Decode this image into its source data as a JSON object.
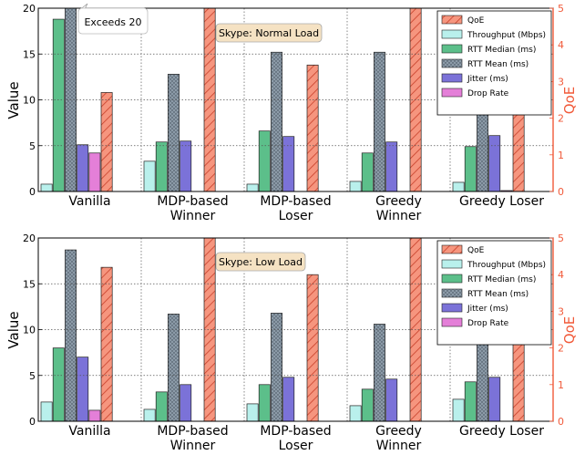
{
  "colors": {
    "qoe_axis": "#f15a3a",
    "qoe_fill": "#f6957e",
    "grid": "#555555"
  },
  "chart_data": [
    {
      "type": "bar",
      "title": "",
      "annotation": "Skype: Normal Load",
      "callout": "Exceeds 20",
      "ylabel": "Value",
      "y2label": "QoE",
      "ylim": [
        0,
        20
      ],
      "y2lim": [
        0,
        5
      ],
      "yticks": [
        "0",
        "5",
        "10",
        "15",
        "20"
      ],
      "y2ticks": [
        "0",
        "1",
        "2",
        "3",
        "4",
        "5"
      ],
      "categories": [
        "Vanilla",
        "MDP-based Winner",
        "MDP-based Loser",
        "Greedy Winner",
        "Greedy Loser"
      ],
      "category_labels": [
        [
          "Vanilla"
        ],
        [
          "MDP-based",
          "Winner"
        ],
        [
          "MDP-based",
          "Loser"
        ],
        [
          "Greedy",
          "Winner"
        ],
        [
          "Greedy Loser"
        ]
      ],
      "series": [
        {
          "name": "Throughput (Mbps)",
          "color": "#b9f0ec",
          "hatch": "none",
          "values": [
            0.8,
            3.3,
            0.8,
            1.1,
            1.0
          ]
        },
        {
          "name": "RTT Median (ms)",
          "color": "#5cbf8a",
          "hatch": "none",
          "values": [
            18.8,
            5.4,
            6.6,
            4.2,
            4.9
          ]
        },
        {
          "name": "RTT Mean (ms)",
          "color": "#8c9ba8",
          "hatch": "dots",
          "values": [
            20,
            12.8,
            15.2,
            15.2,
            15.7
          ]
        },
        {
          "name": "Jitter (ms)",
          "color": "#7b72d8",
          "hatch": "none",
          "values": [
            5.1,
            5.5,
            6.0,
            5.4,
            6.1
          ]
        },
        {
          "name": "Drop Rate",
          "color": "#e47fd8",
          "hatch": "none",
          "values": [
            4.2,
            0,
            0,
            0,
            0.1
          ]
        }
      ],
      "qoe": {
        "name": "QoE",
        "values": [
          2.7,
          5,
          3.45,
          5,
          3.33
        ]
      },
      "legend": "top-right"
    },
    {
      "type": "bar",
      "title": "",
      "annotation": "Skype: Low Load",
      "ylabel": "Value",
      "y2label": "QoE",
      "ylim": [
        0,
        20
      ],
      "y2lim": [
        0,
        5
      ],
      "yticks": [
        "0",
        "5",
        "10",
        "15",
        "20"
      ],
      "y2ticks": [
        "0",
        "1",
        "2",
        "3",
        "4",
        "5"
      ],
      "categories": [
        "Vanilla",
        "MDP-based Winner",
        "MDP-based Loser",
        "Greedy Winner",
        "Greedy Loser"
      ],
      "category_labels": [
        [
          "Vanilla"
        ],
        [
          "MDP-based",
          "Winner"
        ],
        [
          "MDP-based",
          "Loser"
        ],
        [
          "Greedy",
          "Winner"
        ],
        [
          "Greedy Loser"
        ]
      ],
      "series": [
        {
          "name": "Throughput (Mbps)",
          "color": "#b9f0ec",
          "hatch": "none",
          "values": [
            2.1,
            1.3,
            1.9,
            1.7,
            2.4
          ]
        },
        {
          "name": "RTT Median (ms)",
          "color": "#5cbf8a",
          "hatch": "none",
          "values": [
            8.0,
            3.2,
            4.0,
            3.5,
            4.3
          ]
        },
        {
          "name": "RTT Mean (ms)",
          "color": "#8c9ba8",
          "hatch": "dots",
          "values": [
            18.7,
            11.7,
            11.8,
            10.6,
            11.5
          ]
        },
        {
          "name": "Jitter (ms)",
          "color": "#7b72d8",
          "hatch": "none",
          "values": [
            7.0,
            4.0,
            4.8,
            4.6,
            4.8
          ]
        },
        {
          "name": "Drop Rate",
          "color": "#e47fd8",
          "hatch": "none",
          "values": [
            1.2,
            0,
            0,
            0,
            0
          ]
        }
      ],
      "qoe": {
        "name": "QoE",
        "values": [
          4.2,
          5,
          4.0,
          5,
          4.4
        ]
      },
      "legend": "top-right"
    }
  ]
}
